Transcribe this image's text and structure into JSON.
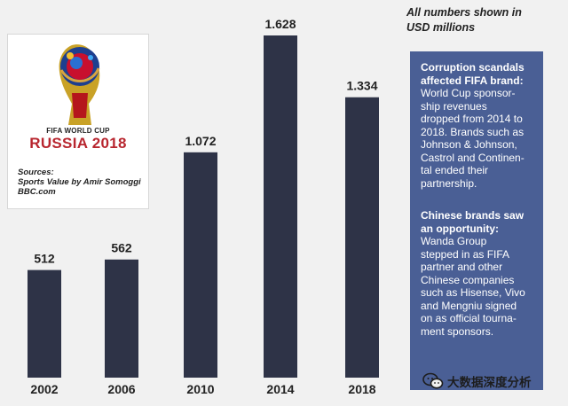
{
  "chart_data": {
    "type": "bar",
    "categories": [
      "2002",
      "2006",
      "2010",
      "2014",
      "2018"
    ],
    "values": [
      512,
      562,
      1072,
      1628,
      1334
    ],
    "value_labels": [
      "512",
      "562",
      "1.072",
      "1.628",
      "1.334"
    ],
    "bar_color": "#2e3347",
    "units_note": [
      "All numbers shown in",
      "USD millions"
    ]
  },
  "logo": {
    "line1": "FIFA WORLD CUP",
    "line2": "RUSSIA 2018"
  },
  "sources": [
    "Sources:",
    "Sports Value by Amir Somoggi",
    "BBC.com"
  ],
  "panel": {
    "background": "#4a5f95",
    "section1": {
      "heading": [
        "Corruption scandals",
        "affected FIFA brand:"
      ],
      "body": [
        "World Cup sponsor-",
        "ship revenues",
        "dropped from 2014 to",
        "2018. Brands such as",
        "Johnson & Johnson,",
        "Castrol and Continen-",
        "tal ended their",
        "partnership."
      ]
    },
    "section2": {
      "heading": [
        "Chinese brands saw",
        "an opportunity:"
      ],
      "body": [
        "Wanda Group",
        "stepped in as FIFA",
        "partner and other",
        "Chinese companies",
        "such as Hisense, Vivo",
        "and Mengniu signed",
        "on as official tourna-",
        "ment sponsors."
      ]
    }
  },
  "watermark": {
    "text": "大数据深度分析",
    "icon": "wechat-icon"
  }
}
